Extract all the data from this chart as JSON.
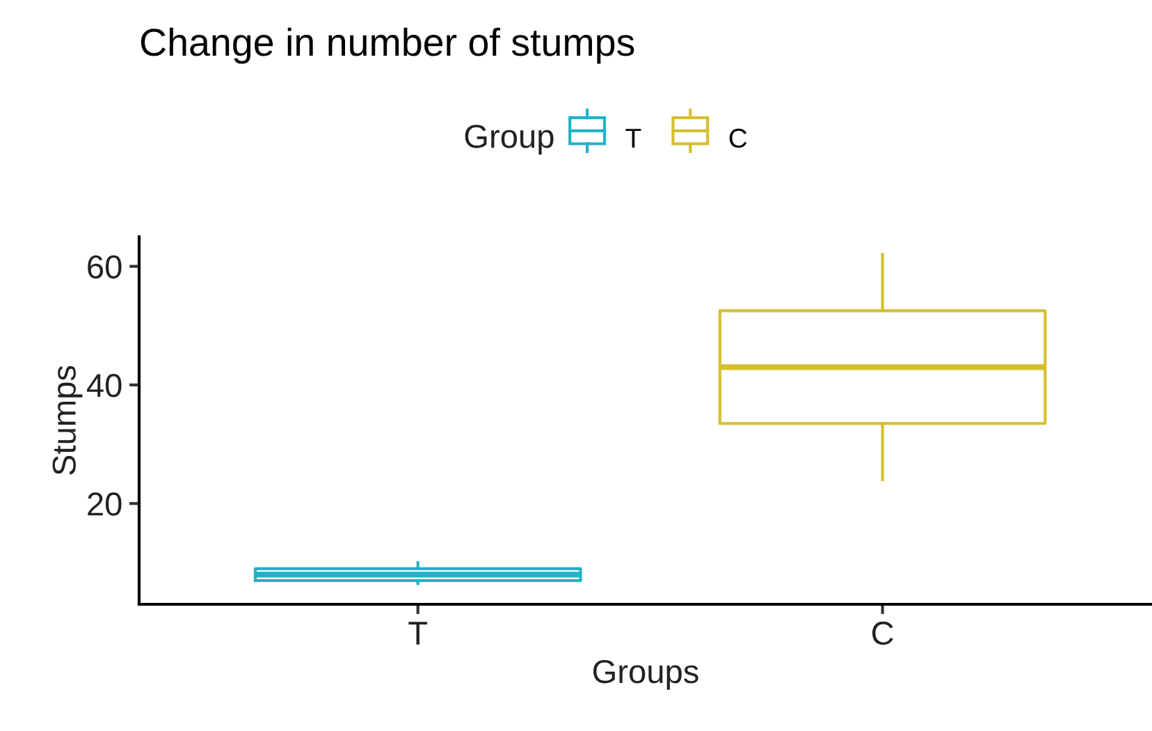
{
  "chart_data": {
    "type": "box",
    "title": "Change in number of stumps",
    "xlabel": "Groups",
    "ylabel": "Stumps",
    "legend_title": "Group",
    "categories": [
      "T",
      "C"
    ],
    "series": [
      {
        "name": "T",
        "color": "#1fb3c6",
        "boxes": [
          {
            "low": 6.5,
            "q1": 7,
            "median": 8,
            "q3": 9,
            "high": 10
          },
          null
        ]
      },
      {
        "name": "C",
        "color": "#d6bf2c",
        "boxes": [
          null,
          {
            "low": 24,
            "q1": 33.5,
            "median": 43,
            "q3": 52.5,
            "high": 62
          }
        ]
      }
    ],
    "ylim": [
      3,
      65
    ],
    "yticks": [
      20,
      40,
      60
    ],
    "grid": false,
    "legend": "top"
  }
}
